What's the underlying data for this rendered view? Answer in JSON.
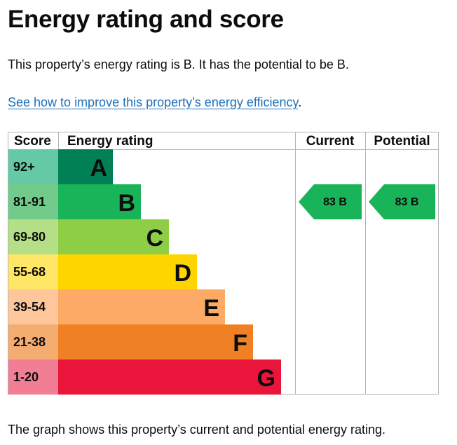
{
  "page": {
    "title": "Energy rating and score",
    "summary": "This property’s energy rating is B. It has the potential to be B.",
    "link_text": "See how to improve this property’s energy efficiency",
    "link_suffix": ".",
    "footer": "The graph shows this property’s current and potential energy rating."
  },
  "chart_data": {
    "type": "bar",
    "column_headers": {
      "score": "Score",
      "rating": "Energy rating",
      "current": "Current",
      "potential": "Potential"
    },
    "bands": [
      {
        "score": "92+",
        "letter": "A",
        "color": "#008054",
        "score_color": "#64c9a4"
      },
      {
        "score": "81-91",
        "letter": "B",
        "color": "#19b459",
        "score_color": "#72ca8b"
      },
      {
        "score": "69-80",
        "letter": "C",
        "color": "#8dce46",
        "score_color": "#b4df86"
      },
      {
        "score": "55-68",
        "letter": "D",
        "color": "#ffd500",
        "score_color": "#ffe666"
      },
      {
        "score": "39-54",
        "letter": "E",
        "color": "#fcaa65",
        "score_color": "#fdc79b"
      },
      {
        "score": "21-38",
        "letter": "F",
        "color": "#ef8023",
        "score_color": "#f4ac71"
      },
      {
        "score": "1-20",
        "letter": "G",
        "color": "#e9153b",
        "score_color": "#f17e94"
      }
    ],
    "current": {
      "value": 83,
      "letter": "B",
      "color": "#19b459"
    },
    "potential": {
      "value": 83,
      "letter": "B",
      "color": "#19b459"
    }
  }
}
